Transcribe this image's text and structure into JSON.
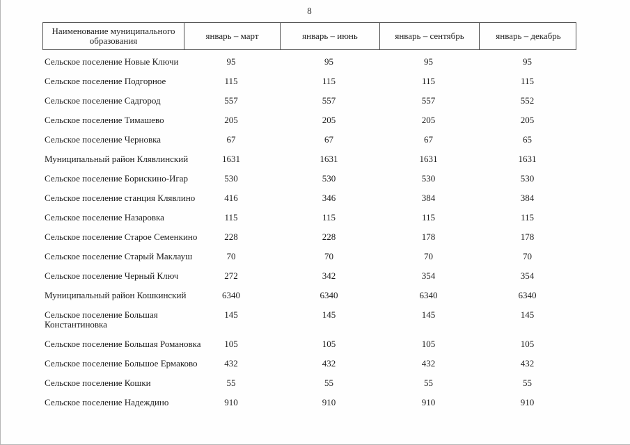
{
  "page": {
    "number": "8"
  },
  "table": {
    "columns": [
      {
        "label": "Наименование муниципального образования"
      },
      {
        "label": "январь – март"
      },
      {
        "label": "январь – июнь"
      },
      {
        "label": "январь – сентябрь"
      },
      {
        "label": "январь – декабрь"
      }
    ],
    "rows": [
      {
        "name": "Сельское поселение Новые Ключи",
        "values": [
          "95",
          "95",
          "95",
          "95"
        ]
      },
      {
        "name": "Сельское поселение Подгорное",
        "values": [
          "115",
          "115",
          "115",
          "115"
        ]
      },
      {
        "name": "Сельское поселение Садгород",
        "values": [
          "557",
          "557",
          "557",
          "552"
        ]
      },
      {
        "name": "Сельское поселение Тимашево",
        "values": [
          "205",
          "205",
          "205",
          "205"
        ]
      },
      {
        "name": "Сельское поселение Черновка",
        "values": [
          "67",
          "67",
          "67",
          "65"
        ]
      },
      {
        "name": "Муниципальный район Клявлинский",
        "values": [
          "1631",
          "1631",
          "1631",
          "1631"
        ]
      },
      {
        "name": "Сельское поселение Борискино-Игар",
        "values": [
          "530",
          "530",
          "530",
          "530"
        ]
      },
      {
        "name": "Сельское поселение станция Клявлино",
        "values": [
          "416",
          "346",
          "384",
          "384"
        ]
      },
      {
        "name": "Сельское поселение Назаровка",
        "values": [
          "115",
          "115",
          "115",
          "115"
        ]
      },
      {
        "name": "Сельское поселение Старое Семенкино",
        "values": [
          "228",
          "228",
          "178",
          "178"
        ]
      },
      {
        "name": "Сельское поселение Старый Маклауш",
        "values": [
          "70",
          "70",
          "70",
          "70"
        ]
      },
      {
        "name": "Сельское поселение Черный Ключ",
        "values": [
          "272",
          "342",
          "354",
          "354"
        ]
      },
      {
        "name": "Муниципальный район Кошкинский",
        "values": [
          "6340",
          "6340",
          "6340",
          "6340"
        ]
      },
      {
        "name": "Сельское поселение Большая Константиновка",
        "values": [
          "145",
          "145",
          "145",
          "145"
        ]
      },
      {
        "name": "Сельское поселение Большая Романовка",
        "values": [
          "105",
          "105",
          "105",
          "105"
        ]
      },
      {
        "name": "Сельское поселение Большое Ермаково",
        "values": [
          "432",
          "432",
          "432",
          "432"
        ]
      },
      {
        "name": "Сельское поселение Кошки",
        "values": [
          "55",
          "55",
          "55",
          "55"
        ]
      },
      {
        "name": "Сельское поселение Надеждино",
        "values": [
          "910",
          "910",
          "910",
          "910"
        ]
      }
    ]
  }
}
